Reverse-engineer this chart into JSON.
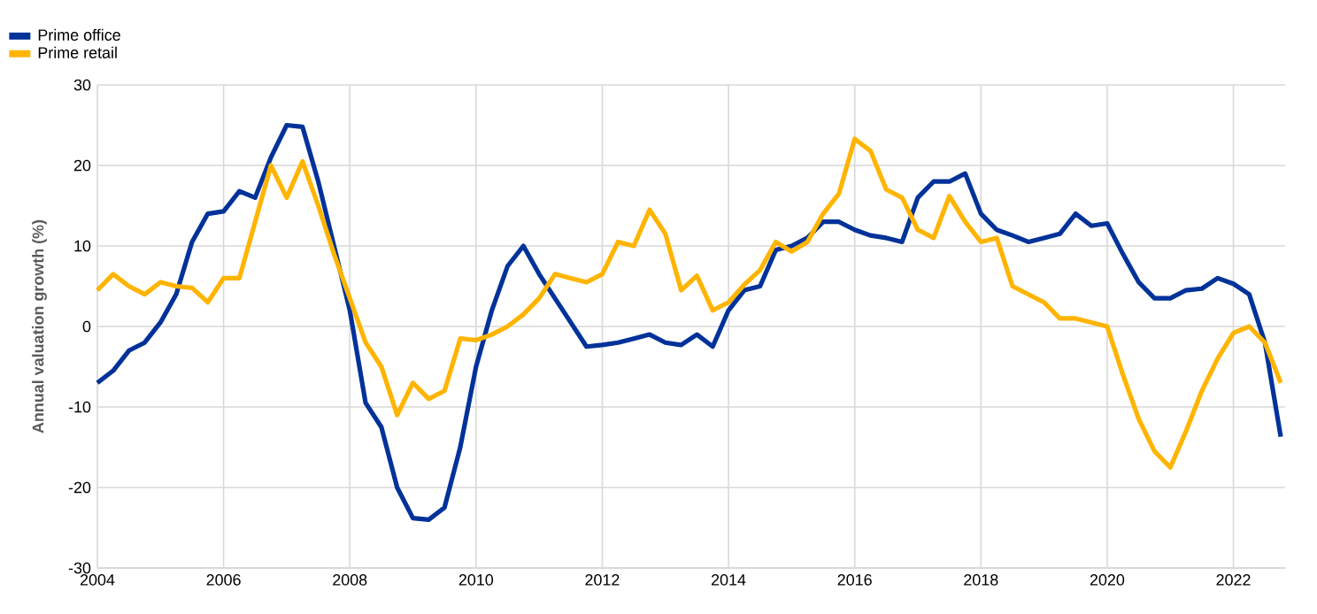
{
  "chart_data": {
    "type": "line",
    "ylabel": "Annual valuation growth (%)",
    "x": [
      2004,
      2004.25,
      2004.5,
      2004.75,
      2005,
      2005.25,
      2005.5,
      2005.75,
      2006,
      2006.25,
      2006.5,
      2006.75,
      2007,
      2007.25,
      2007.5,
      2007.75,
      2008,
      2008.25,
      2008.5,
      2008.75,
      2009,
      2009.25,
      2009.5,
      2009.75,
      2010,
      2010.25,
      2010.5,
      2010.75,
      2011,
      2011.25,
      2011.5,
      2011.75,
      2012,
      2012.25,
      2012.5,
      2012.75,
      2013,
      2013.25,
      2013.5,
      2013.75,
      2014,
      2014.25,
      2014.5,
      2014.75,
      2015,
      2015.25,
      2015.5,
      2015.75,
      2016,
      2016.25,
      2016.5,
      2016.75,
      2017,
      2017.25,
      2017.5,
      2017.75,
      2018,
      2018.25,
      2018.5,
      2018.75,
      2019,
      2019.25,
      2019.5,
      2019.75,
      2020,
      2020.25,
      2020.5,
      2020.75,
      2021,
      2021.25,
      2021.5,
      2021.75,
      2022,
      2022.25,
      2022.5,
      2022.75
    ],
    "series": [
      {
        "name": "Prime office",
        "color": "#003299",
        "values": [
          -7,
          -5.5,
          -3,
          -2,
          0.5,
          4,
          10.5,
          14,
          14.3,
          16.8,
          16,
          21,
          25,
          24.8,
          18,
          10,
          2,
          -9.5,
          -12.5,
          -20,
          -23.8,
          -24,
          -22.5,
          -15,
          -5,
          2,
          7.5,
          10,
          6.5,
          3.5,
          0.5,
          -2.5,
          -2.3,
          -2,
          -1.5,
          -1,
          -2,
          -2.3,
          -1,
          -2.5,
          2,
          4.5,
          5,
          9.5,
          10,
          11,
          13,
          13,
          12,
          11.3,
          11,
          10.5,
          16,
          18,
          18,
          19,
          14,
          12,
          11.3,
          10.5,
          11,
          11.5,
          14,
          12.5,
          12.8,
          9,
          5.5,
          3.5,
          3.5,
          4.5,
          4.7,
          6,
          5.3,
          4,
          -2,
          -13.7
        ]
      },
      {
        "name": "Prime retail",
        "color": "#ffb400",
        "values": [
          4.5,
          6.5,
          5,
          4,
          5.5,
          5,
          4.8,
          3,
          6,
          6,
          13,
          20,
          16,
          20.5,
          15,
          9,
          3.5,
          -2,
          -5,
          -11,
          -7,
          -9,
          -8,
          -1.5,
          -1.7,
          -1,
          0,
          1.5,
          3.5,
          6.5,
          6,
          5.5,
          6.5,
          10.5,
          10,
          14.5,
          11.5,
          4.5,
          6.3,
          2,
          3,
          5.2,
          7,
          10.5,
          9.3,
          10.5,
          14,
          16.5,
          23.3,
          21.8,
          17,
          16,
          12,
          11,
          16.2,
          13,
          10.5,
          11,
          5,
          4,
          3,
          1,
          1,
          0.5,
          0,
          -6,
          -11.5,
          -15.5,
          -17.5,
          -13,
          -8,
          -4,
          -0.8,
          0,
          -2,
          -7
        ]
      }
    ],
    "xlim": [
      2004,
      2022.82
    ],
    "ylim": [
      -30,
      30
    ],
    "xticks": [
      2004,
      2006,
      2008,
      2010,
      2012,
      2014,
      2016,
      2018,
      2020,
      2022
    ],
    "yticks": [
      -30,
      -20,
      -10,
      0,
      10,
      20,
      30
    ],
    "grid": true,
    "legend": "top left",
    "marker": "none",
    "line_style": "solid"
  }
}
